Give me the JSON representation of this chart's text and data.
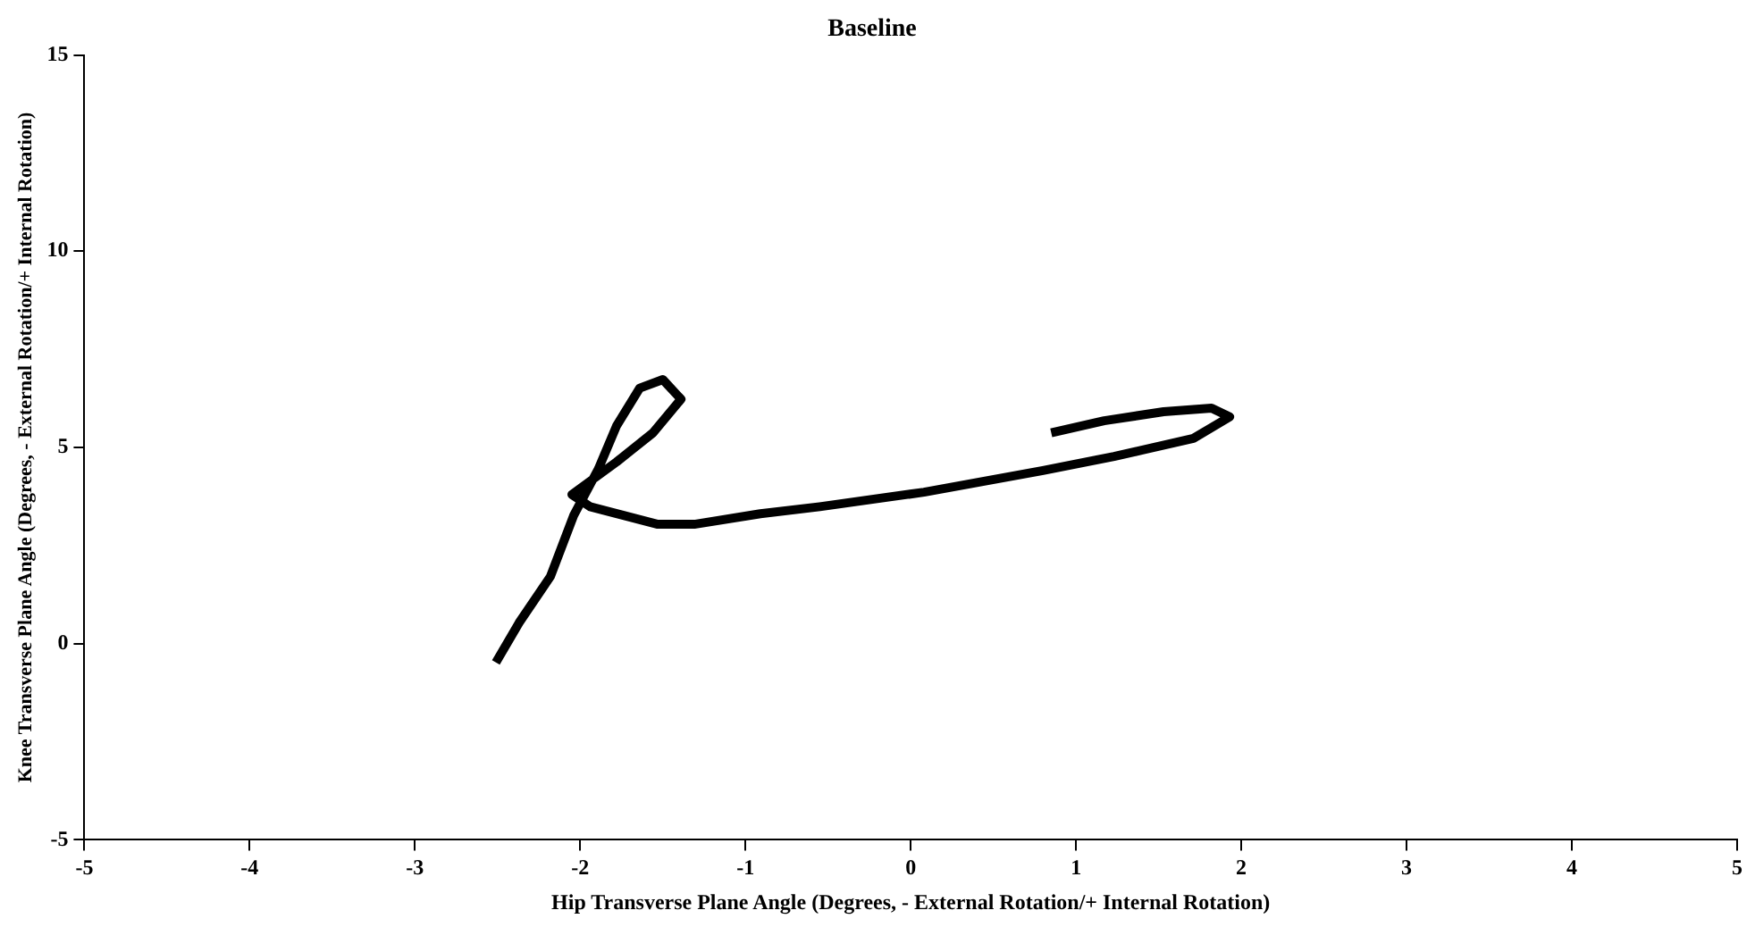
{
  "chart_data": {
    "type": "line",
    "title": "Baseline",
    "xlabel": "Hip Transverse Plane Angle (Degrees, - External Rotation/+ Internal Rotation)",
    "ylabel": "Knee Transverse Plane Angle (Degrees, - External Rotation/+ Internal Rotation)",
    "xlim": [
      -5,
      5
    ],
    "xticks": [
      -5,
      -4,
      -3,
      -2,
      -1,
      0,
      1,
      2,
      3,
      4,
      5
    ],
    "ylim": [
      -5,
      15
    ],
    "yticks": [
      -5,
      0,
      5,
      10,
      15
    ],
    "grid": false,
    "legend": false,
    "marker": "none",
    "line_style": "solid",
    "series": [
      {
        "color": "#000000",
        "x": [
          0.85,
          1.17,
          1.53,
          1.82,
          1.93,
          1.71,
          1.23,
          0.8,
          0.08,
          -0.55,
          -0.91,
          -1.31,
          -1.53,
          -1.94,
          -2.05,
          -1.78,
          -1.56,
          -1.39,
          -1.5,
          -1.64,
          -1.78,
          -1.89,
          -2.04,
          -2.18,
          -2.37,
          -2.51
        ],
        "values": [
          5.37,
          5.68,
          5.91,
          6.0,
          5.78,
          5.23,
          4.77,
          4.41,
          3.86,
          3.49,
          3.31,
          3.04,
          3.04,
          3.49,
          3.8,
          4.63,
          5.37,
          6.23,
          6.73,
          6.51,
          5.55,
          4.45,
          3.26,
          1.71,
          0.53,
          -0.48
        ]
      }
    ]
  }
}
